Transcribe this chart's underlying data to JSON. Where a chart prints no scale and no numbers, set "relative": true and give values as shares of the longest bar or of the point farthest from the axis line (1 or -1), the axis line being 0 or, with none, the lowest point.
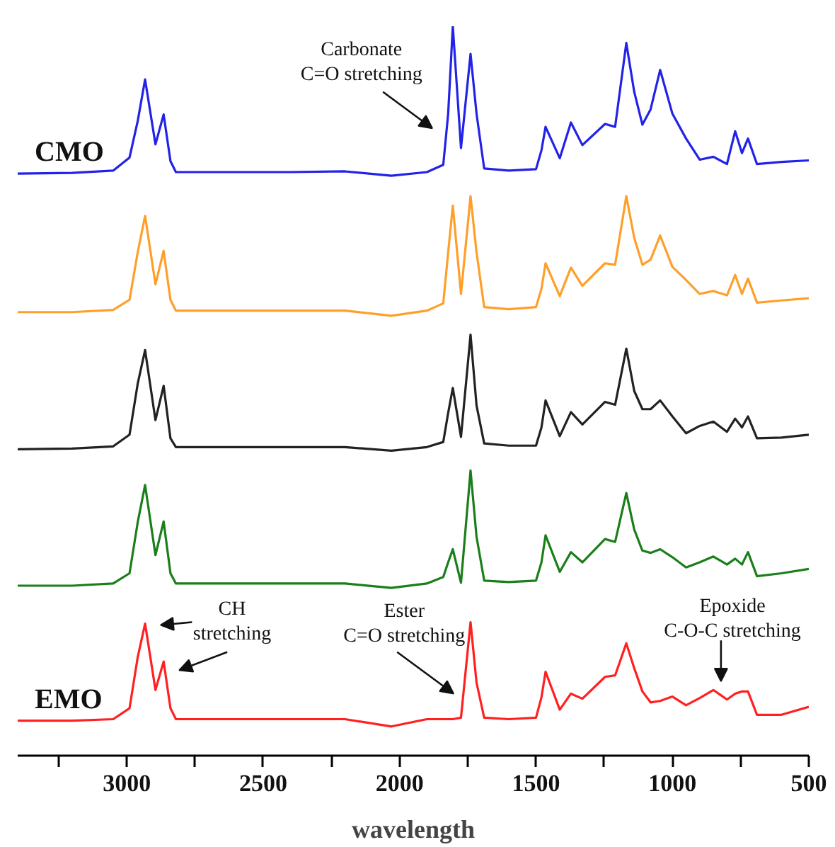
{
  "chart_data": {
    "type": "line",
    "relative": true,
    "xlabel": "wavelength",
    "x": [
      3400,
      3200,
      3050,
      2990,
      2960,
      2933,
      2895,
      2865,
      2840,
      2820,
      2600,
      2400,
      2200,
      2030,
      1900,
      1840,
      1822,
      1805,
      1775,
      1740,
      1718,
      1690,
      1600,
      1500,
      1480,
      1465,
      1413,
      1372,
      1330,
      1247,
      1210,
      1169,
      1140,
      1110,
      1080,
      1045,
      1000,
      950,
      900,
      850,
      800,
      770,
      745,
      723,
      690,
      600,
      500
    ],
    "xlim": [
      3400,
      500
    ],
    "xticks": [
      {
        "value": 3250,
        "label": null
      },
      3000,
      {
        "value": 2750,
        "label": null
      },
      2500,
      {
        "value": 2250,
        "label": null
      },
      2000,
      {
        "value": 1750,
        "label": null
      },
      1500,
      {
        "value": 1250,
        "label": null
      },
      1000,
      {
        "value": 750,
        "label": null
      },
      500
    ],
    "series": [
      {
        "name": "CMO",
        "color": "#2222e8",
        "values": [
          0.798,
          0.799,
          0.802,
          0.82,
          0.87,
          0.927,
          0.838,
          0.879,
          0.815,
          0.8,
          0.8,
          0.8,
          0.801,
          0.795,
          0.8,
          0.81,
          0.88,
          1.0,
          0.833,
          0.962,
          0.88,
          0.805,
          0.802,
          0.804,
          0.83,
          0.862,
          0.819,
          0.868,
          0.837,
          0.866,
          0.862,
          0.977,
          0.91,
          0.865,
          0.886,
          0.94,
          0.88,
          0.846,
          0.817,
          0.821,
          0.811,
          0.856,
          0.826,
          0.846,
          0.811,
          0.814,
          0.816
        ]
      },
      {
        "color": "#ff9f2a",
        "values": [
          0.608,
          0.608,
          0.611,
          0.625,
          0.69,
          0.74,
          0.646,
          0.692,
          0.625,
          0.61,
          0.61,
          0.61,
          0.61,
          0.603,
          0.61,
          0.62,
          0.69,
          0.754,
          0.633,
          0.767,
          0.69,
          0.615,
          0.612,
          0.615,
          0.64,
          0.675,
          0.63,
          0.669,
          0.644,
          0.675,
          0.673,
          0.767,
          0.71,
          0.673,
          0.68,
          0.713,
          0.67,
          0.652,
          0.633,
          0.637,
          0.631,
          0.659,
          0.633,
          0.654,
          0.621,
          0.624,
          0.627
        ]
      },
      {
        "color": "#222222",
        "values": [
          0.42,
          0.421,
          0.424,
          0.44,
          0.51,
          0.556,
          0.46,
          0.507,
          0.435,
          0.423,
          0.423,
          0.423,
          0.423,
          0.418,
          0.423,
          0.43,
          0.47,
          0.504,
          0.437,
          0.577,
          0.48,
          0.428,
          0.425,
          0.425,
          0.45,
          0.487,
          0.438,
          0.471,
          0.454,
          0.485,
          0.481,
          0.558,
          0.5,
          0.475,
          0.475,
          0.487,
          0.465,
          0.442,
          0.452,
          0.458,
          0.444,
          0.462,
          0.45,
          0.465,
          0.435,
          0.436,
          0.44
        ]
      },
      {
        "color": "#1a7f1a",
        "values": [
          0.233,
          0.233,
          0.236,
          0.25,
          0.32,
          0.371,
          0.275,
          0.321,
          0.25,
          0.236,
          0.236,
          0.236,
          0.236,
          0.23,
          0.236,
          0.245,
          0.265,
          0.283,
          0.237,
          0.391,
          0.3,
          0.24,
          0.238,
          0.24,
          0.265,
          0.302,
          0.252,
          0.279,
          0.265,
          0.297,
          0.293,
          0.36,
          0.31,
          0.281,
          0.278,
          0.283,
          0.272,
          0.258,
          0.265,
          0.273,
          0.262,
          0.27,
          0.262,
          0.279,
          0.246,
          0.25,
          0.256
        ]
      },
      {
        "name": "EMO",
        "color": "#ff2020",
        "values": [
          0.048,
          0.048,
          0.05,
          0.065,
          0.135,
          0.181,
          0.09,
          0.129,
          0.065,
          0.05,
          0.05,
          0.05,
          0.05,
          0.04,
          0.05,
          0.05,
          0.05,
          0.05,
          0.052,
          0.183,
          0.1,
          0.052,
          0.05,
          0.052,
          0.08,
          0.115,
          0.063,
          0.085,
          0.078,
          0.108,
          0.11,
          0.154,
          0.12,
          0.088,
          0.073,
          0.075,
          0.081,
          0.069,
          0.079,
          0.09,
          0.077,
          0.085,
          0.088,
          0.088,
          0.056,
          0.056,
          0.067
        ]
      }
    ],
    "annotations": [
      "Carbonate\nC=O stretching",
      "CH\nstretching",
      "Ester\nC=O stretching",
      "Epoxide\nC-O-C stretching"
    ]
  }
}
